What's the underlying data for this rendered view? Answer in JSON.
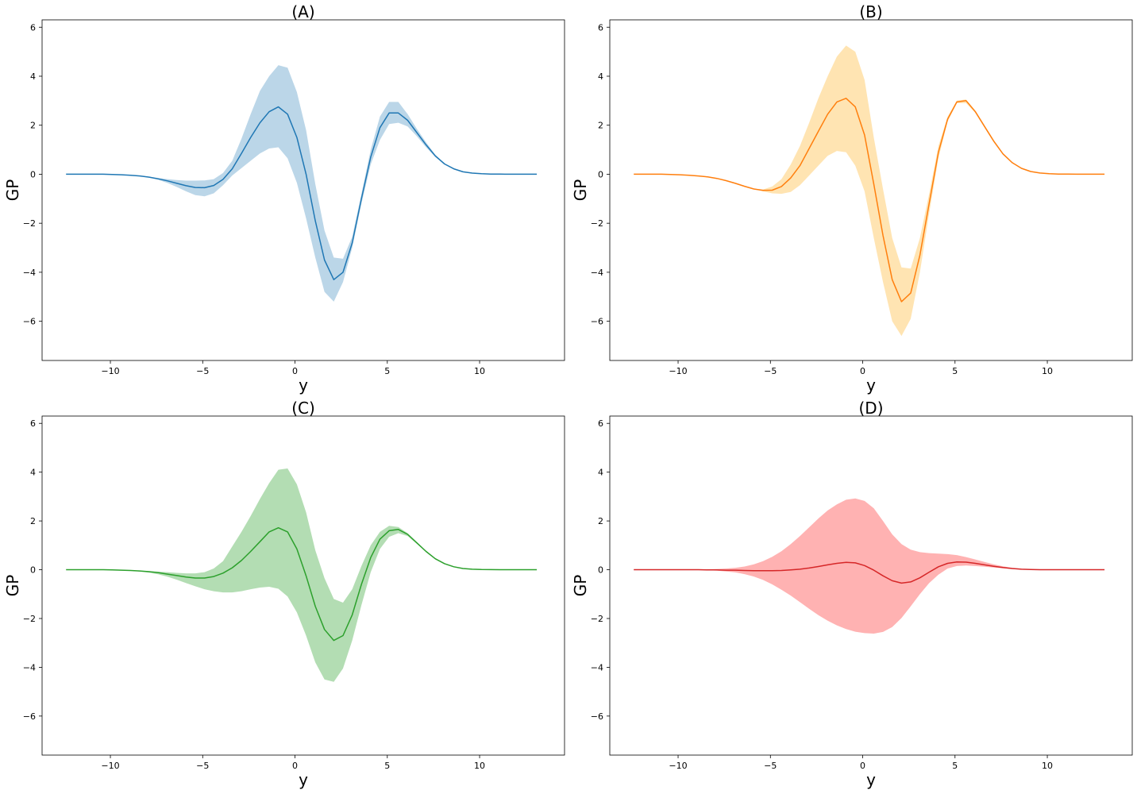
{
  "chart_data": [
    {
      "type": "line",
      "title": "(A)",
      "xlabel": "y",
      "ylabel": "GP",
      "xlim": [
        -13.7,
        14.6
      ],
      "ylim": [
        -7.6,
        6.3
      ],
      "xticks": [
        -10,
        -5,
        0,
        5,
        10
      ],
      "yticks": [
        -6,
        -4,
        -2,
        0,
        2,
        4,
        6
      ],
      "tick_labels_x": [
        "−10",
        "−5",
        "0",
        "5",
        "10"
      ],
      "tick_labels_y": [
        "−6",
        "−4",
        "−2",
        "0",
        "2",
        "4",
        "6"
      ],
      "grid": false,
      "line_color": "#1f77b4",
      "band_color": "#1f77b4",
      "band_opacity": 0.3,
      "x": [
        -12.4,
        -11.9,
        -11.4,
        -10.9,
        -10.4,
        -9.9,
        -9.4,
        -8.9,
        -8.4,
        -7.9,
        -7.4,
        -6.9,
        -6.4,
        -5.9,
        -5.4,
        -4.9,
        -4.4,
        -3.9,
        -3.4,
        -2.9,
        -2.4,
        -1.9,
        -1.4,
        -0.9,
        -0.4,
        0.1,
        0.6,
        1.1,
        1.6,
        2.1,
        2.6,
        3.1,
        3.6,
        4.1,
        4.6,
        5.1,
        5.6,
        6.1,
        6.6,
        7.1,
        7.6,
        8.1,
        8.6,
        9.1,
        9.6,
        10.1,
        10.6,
        11.1,
        11.6,
        12.1,
        12.6,
        13.1
      ],
      "mean": [
        0,
        0,
        0,
        0,
        0,
        -0.01,
        -0.02,
        -0.04,
        -0.07,
        -0.12,
        -0.19,
        -0.27,
        -0.37,
        -0.47,
        -0.54,
        -0.55,
        -0.46,
        -0.21,
        0.22,
        0.85,
        1.5,
        2.1,
        2.55,
        2.75,
        2.45,
        1.5,
        0,
        -1.9,
        -3.5,
        -4.3,
        -4.0,
        -2.8,
        -1.0,
        0.7,
        1.9,
        2.5,
        2.5,
        2.2,
        1.7,
        1.2,
        0.75,
        0.42,
        0.22,
        0.1,
        0.045,
        0.02,
        0.008,
        0.003,
        0.001,
        0,
        0,
        0
      ],
      "lower": [
        0,
        0,
        0,
        0,
        0,
        -0.01,
        -0.02,
        -0.04,
        -0.08,
        -0.14,
        -0.23,
        -0.36,
        -0.52,
        -0.7,
        -0.85,
        -0.9,
        -0.78,
        -0.45,
        -0.05,
        0.25,
        0.55,
        0.85,
        1.05,
        1.1,
        0.65,
        -0.35,
        -1.8,
        -3.4,
        -4.8,
        -5.2,
        -4.4,
        -3.0,
        -1.2,
        0.4,
        1.4,
        2.05,
        2.1,
        1.95,
        1.55,
        1.1,
        0.7,
        0.4,
        0.21,
        0.1,
        0.04,
        0.02,
        0.008,
        0.003,
        0.001,
        0,
        0,
        0
      ],
      "upper": [
        0,
        0,
        0,
        0,
        0,
        -0.01,
        -0.02,
        -0.04,
        -0.06,
        -0.1,
        -0.15,
        -0.2,
        -0.24,
        -0.26,
        -0.26,
        -0.25,
        -0.2,
        0.05,
        0.55,
        1.45,
        2.45,
        3.4,
        4.0,
        4.45,
        4.35,
        3.35,
        1.8,
        -0.4,
        -2.3,
        -3.4,
        -3.45,
        -2.55,
        -0.8,
        1.0,
        2.35,
        2.95,
        2.95,
        2.45,
        1.85,
        1.3,
        0.8,
        0.44,
        0.23,
        0.1,
        0.045,
        0.02,
        0.008,
        0.003,
        0.001,
        0,
        0,
        0
      ]
    },
    {
      "type": "line",
      "title": "(B)",
      "xlabel": "y",
      "ylabel": "GP",
      "xlim": [
        -13.7,
        14.6
      ],
      "ylim": [
        -7.6,
        6.3
      ],
      "xticks": [
        -10,
        -5,
        0,
        5,
        10
      ],
      "yticks": [
        -6,
        -4,
        -2,
        0,
        2,
        4,
        6
      ],
      "tick_labels_x": [
        "−10",
        "−5",
        "0",
        "5",
        "10"
      ],
      "tick_labels_y": [
        "−6",
        "−4",
        "−2",
        "0",
        "2",
        "4",
        "6"
      ],
      "grid": false,
      "line_color": "#ff7f0e",
      "band_color": "#ffa500",
      "band_opacity": 0.3,
      "x": [
        -12.4,
        -11.9,
        -11.4,
        -10.9,
        -10.4,
        -9.9,
        -9.4,
        -8.9,
        -8.4,
        -7.9,
        -7.4,
        -6.9,
        -6.4,
        -5.9,
        -5.4,
        -4.9,
        -4.4,
        -3.9,
        -3.4,
        -2.9,
        -2.4,
        -1.9,
        -1.4,
        -0.9,
        -0.4,
        0.1,
        0.6,
        1.1,
        1.6,
        2.1,
        2.6,
        3.1,
        3.6,
        4.1,
        4.6,
        5.1,
        5.6,
        6.1,
        6.6,
        7.1,
        7.6,
        8.1,
        8.6,
        9.1,
        9.6,
        10.1,
        10.6,
        11.1,
        11.6,
        12.1,
        12.6,
        13.1
      ],
      "mean": [
        0,
        0,
        0,
        0,
        -0.01,
        -0.02,
        -0.04,
        -0.07,
        -0.11,
        -0.17,
        -0.26,
        -0.37,
        -0.49,
        -0.6,
        -0.66,
        -0.65,
        -0.5,
        -0.15,
        0.35,
        1.05,
        1.75,
        2.45,
        2.95,
        3.1,
        2.75,
        1.6,
        -0.4,
        -2.5,
        -4.3,
        -5.2,
        -4.85,
        -3.3,
        -1.2,
        0.9,
        2.25,
        2.95,
        3.0,
        2.55,
        1.95,
        1.35,
        0.83,
        0.47,
        0.24,
        0.11,
        0.05,
        0.02,
        0.008,
        0.003,
        0.001,
        0,
        0,
        0
      ],
      "lower": [
        0,
        0,
        0,
        0,
        -0.01,
        -0.02,
        -0.04,
        -0.07,
        -0.11,
        -0.17,
        -0.26,
        -0.37,
        -0.49,
        -0.6,
        -0.7,
        -0.78,
        -0.8,
        -0.72,
        -0.45,
        -0.05,
        0.35,
        0.75,
        0.95,
        0.9,
        0.35,
        -0.7,
        -2.6,
        -4.4,
        -6.0,
        -6.6,
        -5.9,
        -4.0,
        -1.6,
        0.65,
        2.15,
        2.9,
        2.9,
        2.5,
        1.9,
        1.3,
        0.8,
        0.45,
        0.23,
        0.11,
        0.05,
        0.02,
        0.008,
        0.003,
        0.001,
        0,
        0,
        0
      ],
      "upper": [
        0,
        0,
        0,
        0,
        -0.01,
        -0.02,
        -0.04,
        -0.07,
        -0.11,
        -0.17,
        -0.26,
        -0.37,
        -0.49,
        -0.6,
        -0.62,
        -0.5,
        -0.2,
        0.4,
        1.15,
        2.1,
        3.1,
        4.0,
        4.8,
        5.25,
        5.0,
        3.85,
        1.5,
        -0.6,
        -2.6,
        -3.8,
        -3.85,
        -2.6,
        -0.8,
        1.15,
        2.35,
        3.0,
        3.05,
        2.6,
        2.0,
        1.4,
        0.86,
        0.49,
        0.25,
        0.12,
        0.05,
        0.02,
        0.008,
        0.003,
        0.001,
        0,
        0,
        0
      ]
    },
    {
      "type": "line",
      "title": "(C)",
      "xlabel": "y",
      "ylabel": "GP",
      "xlim": [
        -13.7,
        14.6
      ],
      "ylim": [
        -7.6,
        6.3
      ],
      "xticks": [
        -10,
        -5,
        0,
        5,
        10
      ],
      "yticks": [
        -6,
        -4,
        -2,
        0,
        2,
        4,
        6
      ],
      "tick_labels_x": [
        "−10",
        "−5",
        "0",
        "5",
        "10"
      ],
      "tick_labels_y": [
        "−6",
        "−4",
        "−2",
        "0",
        "2",
        "4",
        "6"
      ],
      "grid": false,
      "line_color": "#2ca02c",
      "band_color": "#2ca02c",
      "band_opacity": 0.36,
      "x": [
        -12.4,
        -11.9,
        -11.4,
        -10.9,
        -10.4,
        -9.9,
        -9.4,
        -8.9,
        -8.4,
        -7.9,
        -7.4,
        -6.9,
        -6.4,
        -5.9,
        -5.4,
        -4.9,
        -4.4,
        -3.9,
        -3.4,
        -2.9,
        -2.4,
        -1.9,
        -1.4,
        -0.9,
        -0.4,
        0.1,
        0.6,
        1.1,
        1.6,
        2.1,
        2.6,
        3.1,
        3.6,
        4.1,
        4.6,
        5.1,
        5.6,
        6.1,
        6.6,
        7.1,
        7.6,
        8.1,
        8.6,
        9.1,
        9.6,
        10.1,
        10.6,
        11.1,
        11.6,
        12.1,
        12.6,
        13.1
      ],
      "mean": [
        0,
        0,
        0,
        0,
        0,
        -0.01,
        -0.02,
        -0.03,
        -0.05,
        -0.08,
        -0.12,
        -0.18,
        -0.24,
        -0.3,
        -0.34,
        -0.34,
        -0.28,
        -0.14,
        0.08,
        0.38,
        0.75,
        1.15,
        1.55,
        1.72,
        1.55,
        0.85,
        -0.25,
        -1.5,
        -2.45,
        -2.9,
        -2.7,
        -1.85,
        -0.6,
        0.5,
        1.25,
        1.6,
        1.65,
        1.45,
        1.1,
        0.75,
        0.45,
        0.25,
        0.12,
        0.05,
        0.02,
        0.008,
        0.003,
        0.001,
        0,
        0,
        0,
        0
      ],
      "lower": [
        0,
        0,
        0,
        0,
        0,
        -0.01,
        -0.02,
        -0.04,
        -0.07,
        -0.12,
        -0.19,
        -0.29,
        -0.41,
        -0.55,
        -0.68,
        -0.8,
        -0.88,
        -0.93,
        -0.93,
        -0.88,
        -0.8,
        -0.73,
        -0.7,
        -0.78,
        -1.1,
        -1.75,
        -2.7,
        -3.8,
        -4.5,
        -4.6,
        -4.05,
        -2.9,
        -1.45,
        -0.1,
        0.85,
        1.35,
        1.5,
        1.38,
        1.06,
        0.72,
        0.43,
        0.24,
        0.11,
        0.05,
        0.02,
        0.008,
        0.003,
        0.001,
        0,
        0,
        0,
        0
      ],
      "upper": [
        0,
        0,
        0,
        0,
        0,
        -0.01,
        -0.02,
        -0.03,
        -0.04,
        -0.06,
        -0.08,
        -0.1,
        -0.13,
        -0.15,
        -0.15,
        -0.1,
        0.05,
        0.35,
        0.95,
        1.55,
        2.2,
        2.9,
        3.55,
        4.1,
        4.15,
        3.5,
        2.35,
        0.8,
        -0.35,
        -1.2,
        -1.35,
        -0.8,
        0.15,
        1.0,
        1.55,
        1.8,
        1.75,
        1.5,
        1.13,
        0.78,
        0.47,
        0.26,
        0.12,
        0.05,
        0.02,
        0.008,
        0.003,
        0.001,
        0,
        0,
        0,
        0
      ]
    },
    {
      "type": "line",
      "title": "(D)",
      "xlabel": "y",
      "ylabel": "GP",
      "xlim": [
        -13.7,
        14.6
      ],
      "ylim": [
        -7.6,
        6.3
      ],
      "xticks": [
        -10,
        -5,
        0,
        5,
        10
      ],
      "yticks": [
        -6,
        -4,
        -2,
        0,
        2,
        4,
        6
      ],
      "tick_labels_x": [
        "−10",
        "−5",
        "0",
        "5",
        "10"
      ],
      "tick_labels_y": [
        "−6",
        "−4",
        "−2",
        "0",
        "2",
        "4",
        "6"
      ],
      "grid": false,
      "line_color": "#d62728",
      "band_color": "#ff0000",
      "band_opacity": 0.3,
      "x": [
        -12.4,
        -11.9,
        -11.4,
        -10.9,
        -10.4,
        -9.9,
        -9.4,
        -8.9,
        -8.4,
        -7.9,
        -7.4,
        -6.9,
        -6.4,
        -5.9,
        -5.4,
        -4.9,
        -4.4,
        -3.9,
        -3.4,
        -2.9,
        -2.4,
        -1.9,
        -1.4,
        -0.9,
        -0.4,
        0.1,
        0.6,
        1.1,
        1.6,
        2.1,
        2.6,
        3.1,
        3.6,
        4.1,
        4.6,
        5.1,
        5.6,
        6.1,
        6.6,
        7.1,
        7.6,
        8.1,
        8.6,
        9.1,
        9.6,
        10.1,
        10.6,
        11.1,
        11.6,
        12.1,
        12.6,
        13.1
      ],
      "mean": [
        0,
        0,
        0,
        0,
        0,
        0,
        0,
        0,
        -0.01,
        -0.01,
        -0.02,
        -0.02,
        -0.03,
        -0.04,
        -0.04,
        -0.04,
        -0.03,
        -0.01,
        0.02,
        0.07,
        0.13,
        0.2,
        0.26,
        0.3,
        0.28,
        0.17,
        -0.02,
        -0.25,
        -0.45,
        -0.55,
        -0.5,
        -0.33,
        -0.1,
        0.12,
        0.26,
        0.32,
        0.31,
        0.26,
        0.2,
        0.14,
        0.09,
        0.05,
        0.02,
        0.01,
        0,
        0,
        0,
        0,
        0,
        0,
        0,
        0
      ],
      "lower": [
        0,
        0,
        0,
        0,
        0,
        0,
        -0.01,
        -0.01,
        -0.02,
        -0.04,
        -0.07,
        -0.11,
        -0.18,
        -0.28,
        -0.42,
        -0.6,
        -0.82,
        -1.06,
        -1.33,
        -1.6,
        -1.86,
        -2.09,
        -2.28,
        -2.43,
        -2.54,
        -2.6,
        -2.62,
        -2.55,
        -2.35,
        -1.98,
        -1.5,
        -1.0,
        -0.55,
        -0.2,
        0.05,
        0.15,
        0.17,
        0.15,
        0.12,
        0.09,
        0.06,
        0.03,
        0.015,
        0.007,
        0,
        0,
        0,
        0,
        0,
        0,
        0,
        0
      ],
      "upper": [
        0,
        0,
        0,
        0,
        0,
        0,
        0.01,
        0.01,
        0.02,
        0.03,
        0.05,
        0.08,
        0.13,
        0.22,
        0.35,
        0.53,
        0.76,
        1.05,
        1.38,
        1.74,
        2.1,
        2.43,
        2.68,
        2.87,
        2.92,
        2.82,
        2.52,
        2.0,
        1.45,
        1.05,
        0.82,
        0.72,
        0.68,
        0.66,
        0.64,
        0.6,
        0.52,
        0.42,
        0.32,
        0.22,
        0.14,
        0.08,
        0.04,
        0.02,
        0.01,
        0,
        0,
        0,
        0,
        0,
        0,
        0
      ]
    }
  ]
}
